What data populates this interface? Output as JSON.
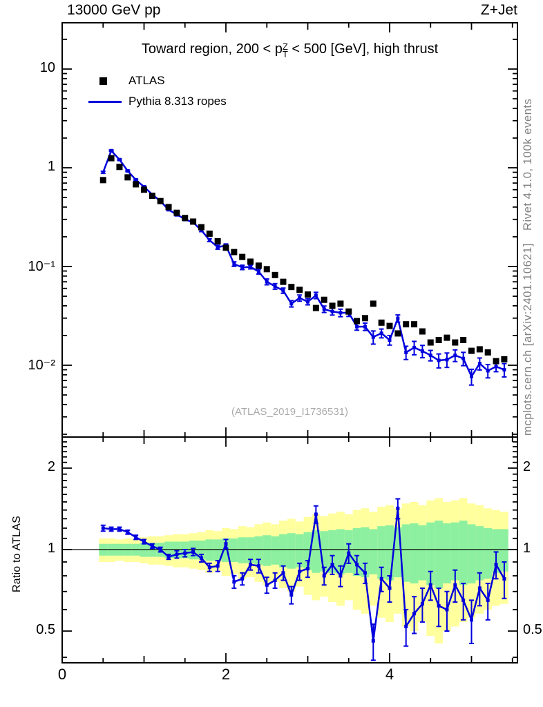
{
  "header": {
    "beam_energy": "13000 GeV pp",
    "process": "Z+Jet"
  },
  "title": {
    "pre": "Toward region, 200 < p",
    "sup": "Z",
    "sub": "T",
    "post": " < 500 [GeV], high thrust"
  },
  "legend": [
    {
      "label": "ATLAS",
      "marker": "black-square"
    },
    {
      "label": "Pythia 8.313 ropes",
      "marker": "blue-line"
    }
  ],
  "watermark": "(ATLAS_2019_I1736531)",
  "side_text": {
    "right_top": "Rivet 4.1.0,  100k events",
    "right_bottom": "mcplots.cern.ch [arXiv:2401.10621]"
  },
  "colors": {
    "pythia_blue": "#0000dd",
    "atlas_black": "#000000",
    "band_green": "#8df0a0",
    "band_yellow": "#ffff9e",
    "gray_text": "#808080"
  },
  "axes": {
    "x": {
      "tick_labels": [
        {
          "text": "0",
          "x": 90
        },
        {
          "text": "2",
          "x": 327
        },
        {
          "text": "4",
          "x": 564
        }
      ]
    },
    "main_y": {
      "tick_labels": [
        {
          "text": "10",
          "y": 100
        },
        {
          "text": "1",
          "y": 243
        },
        {
          "text": "10⁻¹",
          "y": 386
        },
        {
          "text": "10⁻²",
          "y": 529
        }
      ]
    },
    "ratio_y": {
      "label": "Ratio to ATLAS",
      "tick_labels": [
        {
          "text": "2",
          "y": 678
        },
        {
          "text": "1",
          "y": 796
        },
        {
          "text": "0.5",
          "y": 914
        }
      ]
    }
  },
  "chart_data": {
    "type": "line",
    "title": "Toward region, 200 < pT(Z) < 500 [GeV], high thrust",
    "x": [
      0.5,
      0.6,
      0.7,
      0.8,
      0.9,
      1.0,
      1.1,
      1.2,
      1.3,
      1.4,
      1.5,
      1.6,
      1.7,
      1.8,
      1.9,
      2.0,
      2.1,
      2.2,
      2.3,
      2.4,
      2.5,
      2.6,
      2.7,
      2.8,
      2.9,
      3.0,
      3.1,
      3.2,
      3.3,
      3.4,
      3.5,
      3.6,
      3.7,
      3.8,
      3.9,
      4.0,
      4.1,
      4.2,
      4.3,
      4.4,
      4.5,
      4.6,
      4.7,
      4.8,
      4.9,
      5.0,
      5.1,
      5.2,
      5.3,
      5.4
    ],
    "bin_width": 0.1,
    "main": {
      "yscale": "log",
      "ylim": [
        0.0019,
        29.5
      ],
      "xlim": [
        0,
        5.56
      ],
      "series": [
        {
          "name": "ATLAS",
          "marker": "square",
          "color": "#000000",
          "values": [
            0.75,
            1.25,
            1.02,
            0.8,
            0.68,
            0.6,
            0.52,
            0.46,
            0.4,
            0.35,
            0.31,
            0.285,
            0.25,
            0.215,
            0.18,
            0.155,
            0.14,
            0.125,
            0.112,
            0.102,
            0.094,
            0.082,
            0.07,
            0.062,
            0.058,
            0.052,
            0.038,
            0.046,
            0.04,
            0.042,
            0.035,
            0.028,
            0.03,
            0.042,
            0.027,
            0.025,
            0.021,
            0.026,
            0.026,
            0.022,
            0.017,
            0.018,
            0.019,
            0.017,
            0.018,
            0.014,
            0.0145,
            0.0135,
            0.011,
            0.0115
          ]
        },
        {
          "name": "Pythia 8.313 ropes",
          "marker": "line",
          "color": "#0000dd",
          "values": [
            0.9,
            1.49,
            1.21,
            0.93,
            0.755,
            0.642,
            0.536,
            0.46,
            0.376,
            0.336,
            0.301,
            0.279,
            0.233,
            0.185,
            0.157,
            0.163,
            0.106,
            0.098,
            0.099,
            0.089,
            0.07,
            0.063,
            0.057,
            0.042,
            0.048,
            0.044,
            0.051,
            0.037,
            0.035,
            0.034,
            0.034,
            0.0246,
            0.0246,
            0.0193,
            0.0211,
            0.018,
            0.0298,
            0.0135,
            0.0151,
            0.0139,
            0.0126,
            0.0112,
            0.0114,
            0.0126,
            0.0117,
            0.0077,
            0.0104,
            0.0088,
            0.0097,
            0.009
          ]
        }
      ]
    },
    "ratio": {
      "ylabel": "Ratio to ATLAS",
      "yscale": "log",
      "ylim": [
        0.38,
        2.6
      ],
      "values": [
        1.2,
        1.19,
        1.19,
        1.16,
        1.11,
        1.07,
        1.03,
        1.0,
        0.94,
        0.96,
        0.97,
        0.98,
        0.93,
        0.86,
        0.87,
        1.05,
        0.76,
        0.78,
        0.88,
        0.87,
        0.74,
        0.77,
        0.82,
        0.68,
        0.83,
        0.85,
        1.35,
        0.8,
        0.88,
        0.8,
        0.97,
        0.88,
        0.82,
        0.46,
        0.78,
        0.72,
        1.42,
        0.52,
        0.58,
        0.63,
        0.74,
        0.62,
        0.6,
        0.74,
        0.65,
        0.55,
        0.72,
        0.65,
        0.88,
        0.78
      ],
      "err": [
        0.03,
        0.02,
        0.02,
        0.02,
        0.02,
        0.02,
        0.02,
        0.02,
        0.02,
        0.03,
        0.03,
        0.03,
        0.03,
        0.03,
        0.04,
        0.04,
        0.04,
        0.04,
        0.04,
        0.05,
        0.05,
        0.05,
        0.05,
        0.05,
        0.06,
        0.06,
        0.1,
        0.06,
        0.07,
        0.07,
        0.08,
        0.07,
        0.07,
        0.07,
        0.08,
        0.08,
        0.12,
        0.08,
        0.09,
        0.09,
        0.09,
        0.1,
        0.1,
        0.1,
        0.1,
        0.1,
        0.1,
        0.1,
        0.1,
        0.12
      ],
      "band_yellow": {
        "hi": [
          1.1,
          1.1,
          1.09,
          1.1,
          1.1,
          1.11,
          1.12,
          1.12,
          1.13,
          1.14,
          1.14,
          1.15,
          1.16,
          1.18,
          1.17,
          1.2,
          1.19,
          1.22,
          1.21,
          1.24,
          1.26,
          1.24,
          1.28,
          1.3,
          1.27,
          1.32,
          1.35,
          1.33,
          1.36,
          1.38,
          1.35,
          1.4,
          1.42,
          1.38,
          1.44,
          1.46,
          1.42,
          1.48,
          1.5,
          1.46,
          1.52,
          1.55,
          1.5,
          1.52,
          1.55,
          1.48,
          1.46,
          1.42,
          1.4,
          1.38
        ],
        "lo": [
          0.9,
          0.9,
          0.91,
          0.9,
          0.9,
          0.89,
          0.88,
          0.88,
          0.87,
          0.86,
          0.86,
          0.85,
          0.84,
          0.82,
          0.83,
          0.8,
          0.81,
          0.78,
          0.79,
          0.76,
          0.74,
          0.76,
          0.72,
          0.7,
          0.73,
          0.68,
          0.65,
          0.67,
          0.64,
          0.62,
          0.65,
          0.6,
          0.58,
          0.62,
          0.56,
          0.54,
          0.58,
          0.52,
          0.5,
          0.54,
          0.48,
          0.45,
          0.5,
          0.52,
          0.54,
          0.56,
          0.58,
          0.6,
          0.62,
          0.63
        ]
      },
      "band_green": {
        "hi": [
          1.05,
          1.05,
          1.05,
          1.05,
          1.05,
          1.06,
          1.06,
          1.06,
          1.07,
          1.07,
          1.07,
          1.08,
          1.08,
          1.09,
          1.09,
          1.1,
          1.1,
          1.11,
          1.11,
          1.12,
          1.13,
          1.12,
          1.14,
          1.15,
          1.14,
          1.16,
          1.18,
          1.17,
          1.18,
          1.19,
          1.18,
          1.2,
          1.21,
          1.19,
          1.22,
          1.23,
          1.21,
          1.24,
          1.25,
          1.23,
          1.26,
          1.28,
          1.25,
          1.26,
          1.28,
          1.24,
          1.22,
          1.2,
          1.19,
          1.19
        ],
        "lo": [
          0.95,
          0.95,
          0.95,
          0.95,
          0.95,
          0.94,
          0.94,
          0.94,
          0.93,
          0.93,
          0.93,
          0.92,
          0.92,
          0.91,
          0.91,
          0.9,
          0.9,
          0.89,
          0.89,
          0.88,
          0.87,
          0.88,
          0.86,
          0.85,
          0.86,
          0.84,
          0.82,
          0.83,
          0.82,
          0.81,
          0.82,
          0.8,
          0.79,
          0.81,
          0.78,
          0.77,
          0.79,
          0.76,
          0.75,
          0.77,
          0.74,
          0.72,
          0.75,
          0.77,
          0.74,
          0.75,
          0.77,
          0.78,
          0.82,
          0.83
        ]
      }
    }
  }
}
